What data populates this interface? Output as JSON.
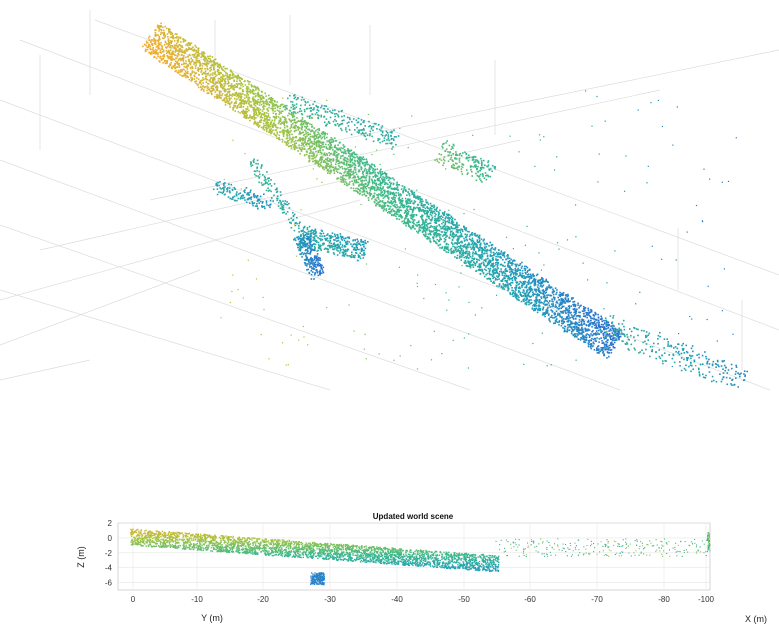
{
  "chart_data": [
    {
      "type": "scatter",
      "view": "3d-perspective",
      "title": "",
      "xlabel": "",
      "ylabel": "",
      "grid": true,
      "colormap": [
        "#2b6fd4",
        "#1fa0b6",
        "#3cb98a",
        "#a6c43f",
        "#f2ac2f"
      ],
      "series": [
        {
          "name": "",
          "points": "dense point cloud of a long corridor structure"
        }
      ]
    },
    {
      "type": "scatter",
      "view": "2d-side",
      "title": "Updated world scene",
      "xlabel": "X (m)",
      "ylabel": "Z (m)",
      "ylabel2": "Y (m)",
      "xlim": [
        0,
        -80
      ],
      "ylim": [
        -7,
        2
      ],
      "x_ticks": [
        "0",
        "-10",
        "-20",
        "-30",
        "-40",
        "-50",
        "-60",
        "-70",
        "-80",
        "-100"
      ],
      "y_ticks": [
        "2",
        "0",
        "-2",
        "-4",
        "-6"
      ],
      "grid": true,
      "colormap": [
        "#2b6fd4",
        "#1fa0b6",
        "#3cb98a",
        "#a6c43f",
        "#f2ac2f"
      ]
    }
  ]
}
